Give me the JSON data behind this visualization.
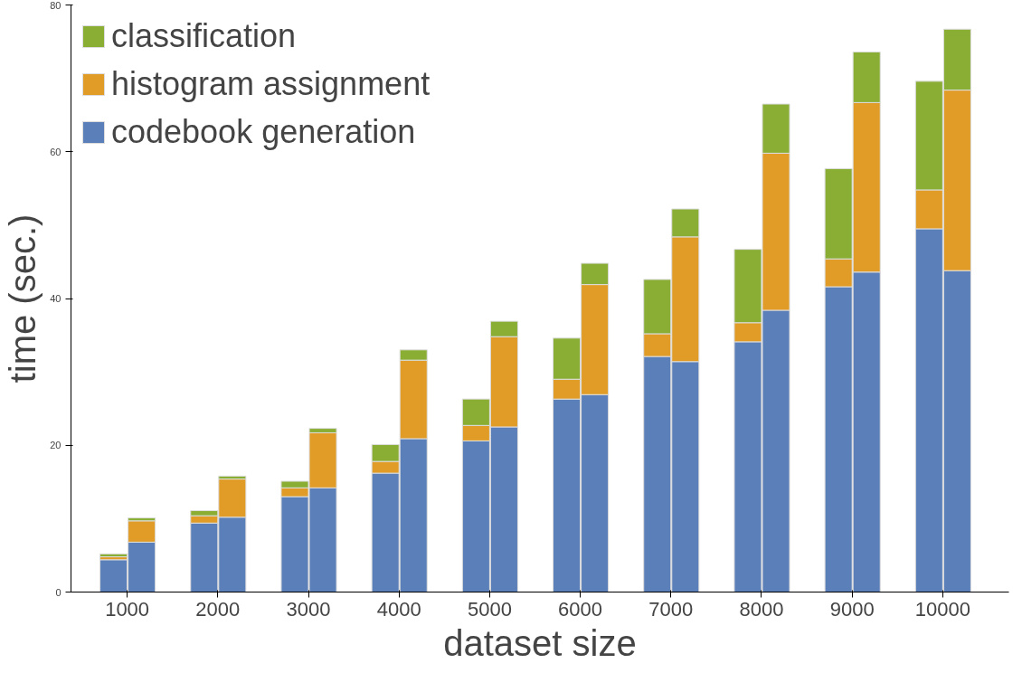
{
  "chart_data": {
    "type": "bar",
    "stacked": true,
    "xlabel": "dataset size",
    "ylabel": "time (sec.)",
    "xlim": [
      380,
      10730
    ],
    "xticks": [
      1000,
      2000,
      3000,
      4000,
      5000,
      6000,
      7000,
      8000,
      9000,
      10000
    ],
    "ylim": [
      0,
      80
    ],
    "yticks": [
      0,
      20,
      40,
      60,
      80
    ],
    "grid": false,
    "legend": "top left",
    "x": [
      850,
      1160,
      1850,
      2160,
      2850,
      3160,
      3850,
      4160,
      4850,
      5160,
      5850,
      6160,
      6850,
      7160,
      7850,
      8160,
      8850,
      9160,
      9850,
      10160
    ],
    "series": [
      {
        "name": "codebook generation",
        "color": "#5b7fb8",
        "values": [
          4.4,
          6.8,
          9.4,
          10.2,
          13.0,
          14.2,
          16.2,
          20.9,
          20.6,
          22.5,
          26.3,
          26.9,
          32.1,
          31.4,
          34.1,
          38.4,
          41.6,
          43.6,
          49.5,
          43.8
        ]
      },
      {
        "name": "histogram assignment",
        "color": "#e09c26",
        "values": [
          0.4,
          2.9,
          1.0,
          5.2,
          1.2,
          7.5,
          1.6,
          10.7,
          2.1,
          12.3,
          2.7,
          15.0,
          3.1,
          17.0,
          2.6,
          21.4,
          3.8,
          23.1,
          5.3,
          24.6
        ]
      },
      {
        "name": "classification",
        "color": "#8aae34",
        "values": [
          0.4,
          0.4,
          0.7,
          0.4,
          0.9,
          0.6,
          2.3,
          1.4,
          3.6,
          2.1,
          5.6,
          2.9,
          7.4,
          3.8,
          10.0,
          6.7,
          12.3,
          6.9,
          14.8,
          8.3
        ]
      }
    ]
  }
}
